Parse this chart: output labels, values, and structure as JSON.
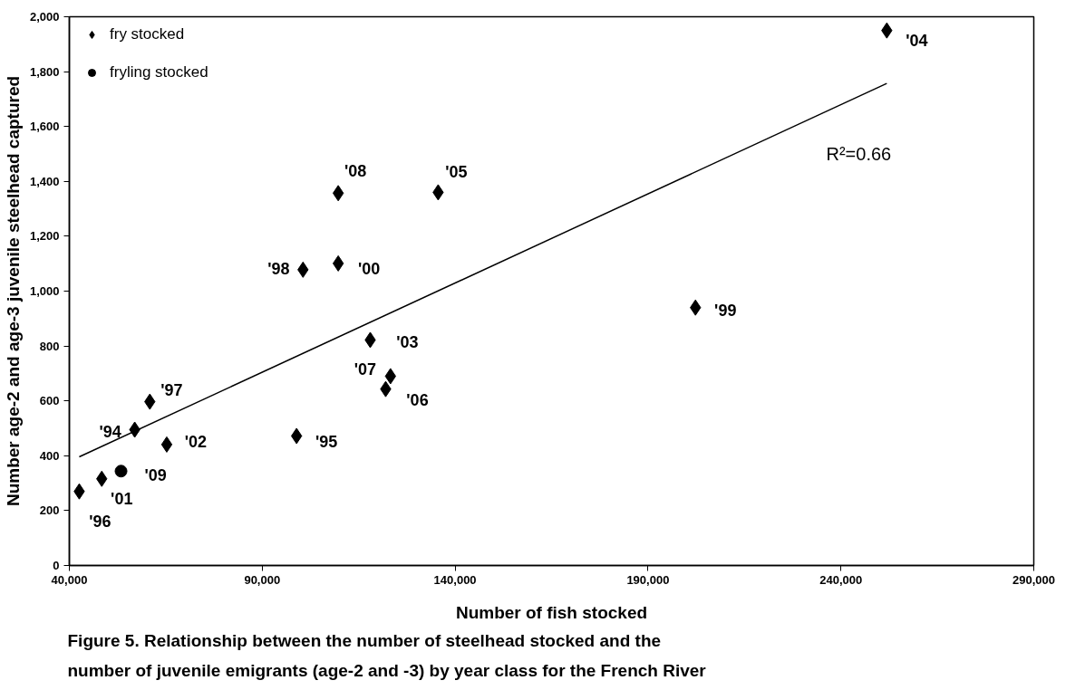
{
  "chart_data": {
    "type": "scatter",
    "xlabel": "Number of fish stocked",
    "ylabel": "Number age-2 and age-3 juvenile steelhead captured",
    "xlim": [
      40000,
      290000
    ],
    "ylim": [
      0,
      2000
    ],
    "xticks": [
      {
        "value": 40000,
        "label": "40,000"
      },
      {
        "value": 90000,
        "label": "90,000"
      },
      {
        "value": 140000,
        "label": "140,000"
      },
      {
        "value": 190000,
        "label": "190,000"
      },
      {
        "value": 240000,
        "label": "240,000"
      },
      {
        "value": 290000,
        "label": "290,000"
      }
    ],
    "yticks": [
      {
        "value": 0,
        "label": "0"
      },
      {
        "value": 200,
        "label": "200"
      },
      {
        "value": 400,
        "label": "400"
      },
      {
        "value": 600,
        "label": "600"
      },
      {
        "value": 800,
        "label": "800"
      },
      {
        "value": 1000,
        "label": "1,000"
      },
      {
        "value": 1200,
        "label": "1,200"
      },
      {
        "value": 1400,
        "label": "1,400"
      },
      {
        "value": 1600,
        "label": "1,600"
      },
      {
        "value": 1800,
        "label": "1,800"
      },
      {
        "value": 2000,
        "label": "2,000"
      }
    ],
    "grid": false,
    "legend": "top left",
    "series": [
      {
        "name": "fry stocked",
        "color": "#000000",
        "marker": "diamond",
        "x": [
          42570,
          48400,
          56950,
          60860,
          65250,
          98900,
          118000,
          123250,
          122000,
          100570,
          109700,
          109700,
          135600,
          251900,
          202300
        ],
        "values": [
          270,
          316,
          495,
          597,
          441,
          472,
          822,
          690,
          643,
          1078,
          1101,
          1357,
          1360,
          1950,
          940
        ]
      },
      {
        "name": "fryling stocked",
        "color": "#000000",
        "marker": "circle",
        "x": [
          53400
        ],
        "values": [
          344
        ]
      },
      {
        "type": "line",
        "color": "#000000",
        "x": [
          42570,
          251900
        ],
        "values": [
          396,
          1757
        ]
      }
    ],
    "annotations": [
      {
        "text": "'96",
        "x": 42570,
        "y": 270
      },
      {
        "text": "'01",
        "x": 48400,
        "y": 316
      },
      {
        "text": "'09",
        "x": 53400,
        "y": 344
      },
      {
        "text": "'94",
        "x": 56950,
        "y": 495
      },
      {
        "text": "'97",
        "x": 60860,
        "y": 597
      },
      {
        "text": "'02",
        "x": 65250,
        "y": 441
      },
      {
        "text": "'95",
        "x": 98900,
        "y": 472
      },
      {
        "text": "'03",
        "x": 118000,
        "y": 822
      },
      {
        "text": "'07",
        "x": 123250,
        "y": 690
      },
      {
        "text": "'06",
        "x": 122000,
        "y": 643
      },
      {
        "text": "'98",
        "x": 100570,
        "y": 1078
      },
      {
        "text": "'00",
        "x": 109700,
        "y": 1101
      },
      {
        "text": "'08",
        "x": 109700,
        "y": 1357
      },
      {
        "text": "'05",
        "x": 135600,
        "y": 1360
      },
      {
        "text": "'04",
        "x": 251900,
        "y": 1950
      },
      {
        "text": "'99",
        "x": 202300,
        "y": 940
      },
      "R²=0.66",
      "Figure 5.  Relationship between the number of steelhead stocked and the",
      "number of juvenile emigrants (age-2 and -3) by year class for the French River"
    ]
  }
}
